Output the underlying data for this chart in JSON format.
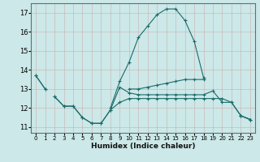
{
  "xlabel": "Humidex (Indice chaleur)",
  "bg_color": "#cce8e8",
  "grid_color": "#b8d8d8",
  "line_color": "#1a6b6b",
  "xlim": [
    -0.5,
    23.5
  ],
  "ylim": [
    10.7,
    17.5
  ],
  "yticks": [
    11,
    12,
    13,
    14,
    15,
    16,
    17
  ],
  "xticks": [
    0,
    1,
    2,
    3,
    4,
    5,
    6,
    7,
    8,
    9,
    10,
    11,
    12,
    13,
    14,
    15,
    16,
    17,
    18,
    19,
    20,
    21,
    22,
    23
  ],
  "curves": [
    {
      "x": [
        0,
        1,
        2,
        3,
        4,
        5,
        6,
        7,
        8,
        9,
        10,
        11,
        12,
        13,
        14,
        15,
        16,
        17,
        18,
        19,
        20,
        21,
        22,
        23
      ],
      "y": [
        13.7,
        13.0,
        null,
        null,
        null,
        null,
        null,
        null,
        12.0,
        13.4,
        14.4,
        15.7,
        16.3,
        16.9,
        17.2,
        17.2,
        16.6,
        15.5,
        13.6,
        null,
        null,
        null,
        11.6,
        11.4
      ],
      "marker": "+"
    },
    {
      "x": [
        0,
        1,
        2,
        3,
        4,
        5,
        6,
        7,
        8,
        9,
        10,
        11,
        12,
        13,
        14,
        15,
        16,
        17,
        18,
        19,
        20,
        21,
        22,
        23
      ],
      "y": [
        13.7,
        13.0,
        null,
        null,
        null,
        null,
        null,
        null,
        null,
        null,
        13.0,
        13.0,
        13.1,
        13.2,
        13.3,
        13.4,
        13.5,
        13.5,
        13.5,
        null,
        null,
        null,
        null,
        null
      ],
      "marker": "+"
    },
    {
      "x": [
        0,
        1,
        2,
        3,
        4,
        5,
        6,
        7,
        8,
        9,
        10,
        11,
        12,
        13,
        14,
        15,
        16,
        17,
        18,
        19,
        20,
        21,
        22,
        23
      ],
      "y": [
        null,
        null,
        12.6,
        12.1,
        12.1,
        11.5,
        11.2,
        11.2,
        11.9,
        13.1,
        12.8,
        12.7,
        12.7,
        12.7,
        12.7,
        12.7,
        12.7,
        12.7,
        12.7,
        12.9,
        12.3,
        12.3,
        11.6,
        11.4
      ],
      "marker": "+"
    },
    {
      "x": [
        0,
        1,
        2,
        3,
        4,
        5,
        6,
        7,
        8,
        9,
        10,
        11,
        12,
        13,
        14,
        15,
        16,
        17,
        18,
        19,
        20,
        21,
        22,
        23
      ],
      "y": [
        null,
        null,
        12.6,
        12.1,
        12.1,
        11.5,
        11.2,
        11.2,
        11.9,
        12.3,
        12.5,
        12.5,
        12.5,
        12.5,
        12.5,
        12.5,
        12.5,
        12.5,
        12.5,
        12.5,
        12.5,
        12.3,
        11.6,
        11.4
      ],
      "marker": "+"
    }
  ]
}
